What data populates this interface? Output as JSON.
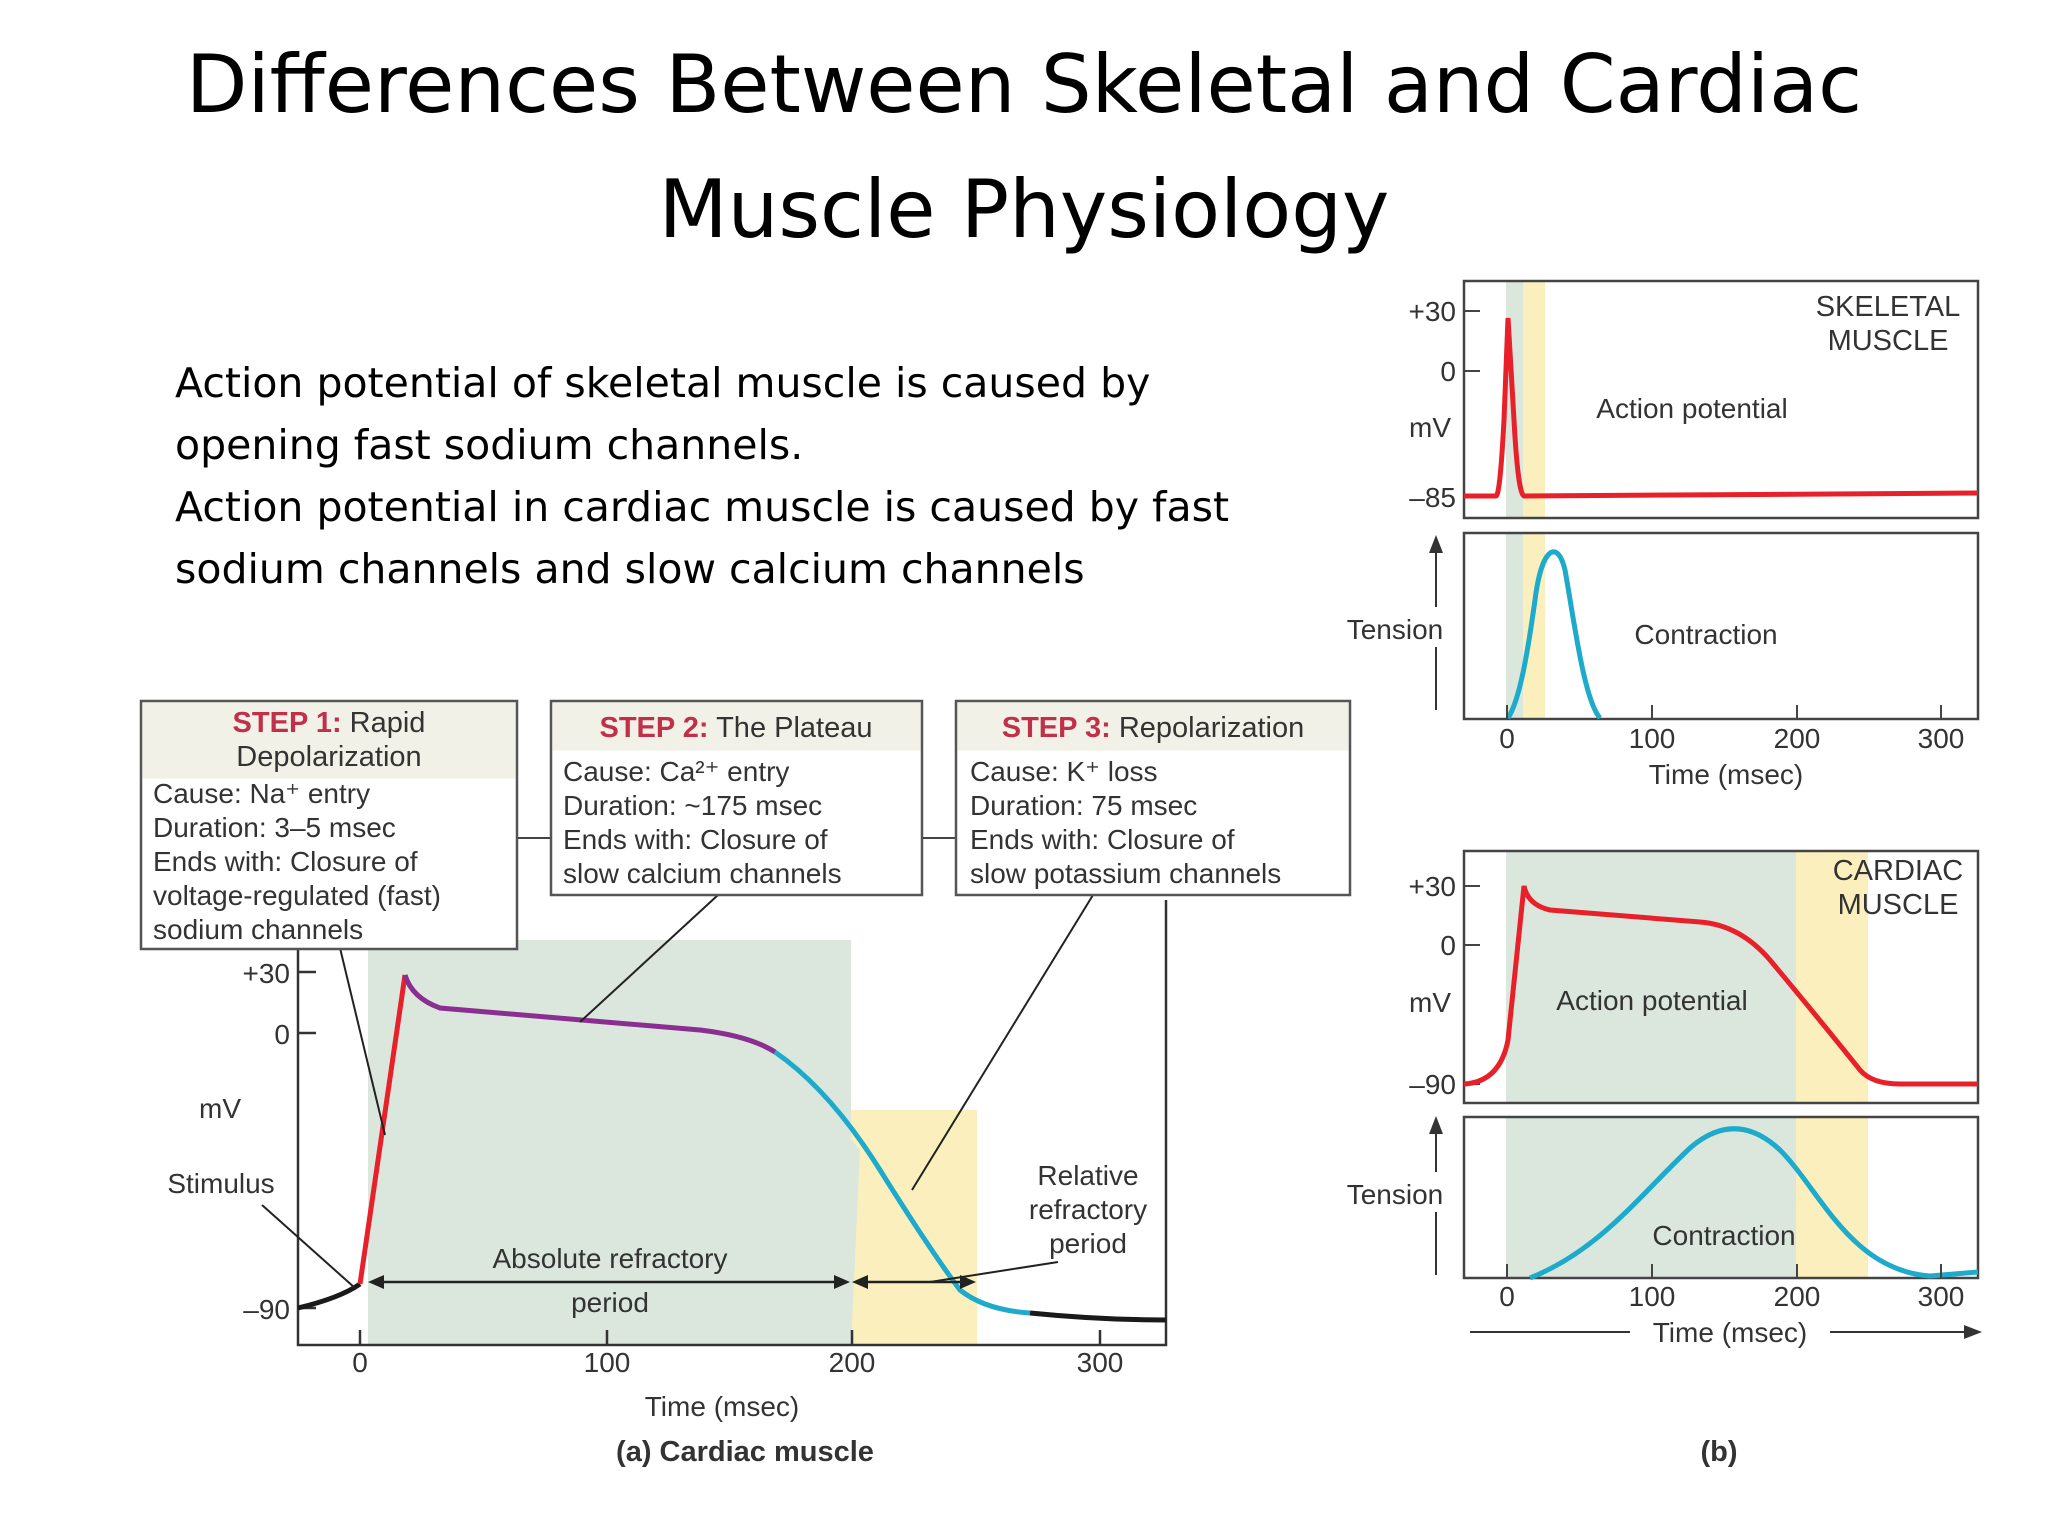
{
  "slide": {
    "title_line1": "Differences Between Skeletal and Cardiac",
    "title_line2": "Muscle Physiology",
    "paragraphs": [
      "Action potential of skeletal muscle is caused by opening fast sodium channels.",
      "Action potential in cardiac muscle is caused by fast sodium channels and slow calcium channels"
    ]
  },
  "panel_a": {
    "caption": "(a) Cardiac muscle",
    "y_label": "mV",
    "y_ticks": [
      "+30",
      "0",
      "–90"
    ],
    "x_ticks": [
      "0",
      "100",
      "200",
      "300"
    ],
    "x_label": "Time (msec)",
    "stimulus_label": "Stimulus",
    "absolute_refractory_line1": "Absolute refractory",
    "absolute_refractory_line2": "period",
    "relative_refractory_line1": "Relative",
    "relative_refractory_line2": "refractory",
    "relative_refractory_line3": "period",
    "step1": {
      "head": "STEP 1:",
      "title_rest": " Rapid",
      "title_line2": "Depolarization",
      "lines": [
        "Cause: Na⁺ entry",
        "Duration: 3–5 msec",
        "Ends with: Closure of",
        "voltage-regulated (fast)",
        "sodium channels"
      ]
    },
    "step2": {
      "head": "STEP 2:",
      "title_rest": " The Plateau",
      "lines": [
        "Cause: Ca²⁺ entry",
        "Duration: ~175 msec",
        "Ends with: Closure of",
        "slow calcium channels"
      ]
    },
    "step3": {
      "head": "STEP 3:",
      "title_rest": " Repolarization",
      "lines": [
        "Cause: K⁺ loss",
        "Duration: 75 msec",
        "Ends with: Closure of",
        "slow potassium channels"
      ]
    }
  },
  "panel_b": {
    "caption": "(b)",
    "skeletal": {
      "label_line1": "SKELETAL",
      "label_line2": "MUSCLE",
      "ap_label": "Action potential",
      "contraction_label": "Contraction",
      "y_ticks": [
        "+30",
        "0",
        "–85"
      ],
      "y_label": "mV",
      "tension_label": "Tension",
      "x_ticks": [
        "0",
        "100",
        "200",
        "300"
      ],
      "x_label": "Time (msec)"
    },
    "cardiac": {
      "label_line1": "CARDIAC",
      "label_line2": "MUSCLE",
      "ap_label": "Action potential",
      "contraction_label": "Contraction",
      "y_ticks": [
        "+30",
        "0",
        "–90"
      ],
      "y_label": "mV",
      "tension_label": "Tension",
      "x_ticks": [
        "0",
        "100",
        "200",
        "300"
      ],
      "x_label": "Time (msec)"
    }
  },
  "colors": {
    "absolute_refractory": "#dbe6dd",
    "relative_refractory": "#fbf0bd",
    "depolarization": "#e8202a",
    "plateau": "#8b2e91",
    "repolarization": "#1eaacb",
    "resting": "#1a1a1a",
    "step_header_text": "#c0304a",
    "step_header_bg": "#f2f1e7"
  }
}
